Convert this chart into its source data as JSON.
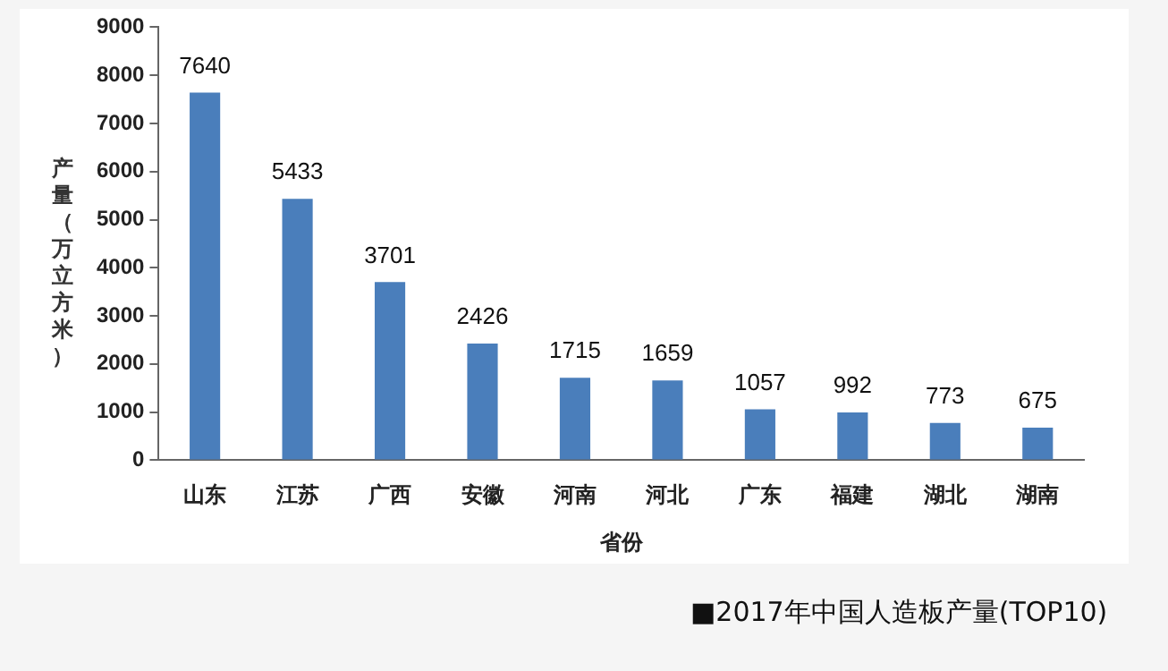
{
  "chart_data": {
    "type": "bar",
    "xlabel": "省份",
    "ylabel": "产量（万立方米）",
    "categories": [
      "山东",
      "江苏",
      "广西",
      "安徽",
      "河南",
      "河北",
      "广东",
      "福建",
      "湖北",
      "湖南"
    ],
    "values": [
      7640,
      5433,
      3701,
      2426,
      1715,
      1659,
      1057,
      992,
      773,
      675
    ],
    "color": "#4a7ebb",
    "ylim": [
      0,
      9000
    ],
    "yticks": [
      0,
      1000,
      2000,
      3000,
      4000,
      5000,
      6000,
      7000,
      8000,
      9000
    ],
    "grid": false,
    "legend": false,
    "data_labels": true,
    "annotations": [
      "■2017年中国人造板产量(TOP10)"
    ]
  }
}
